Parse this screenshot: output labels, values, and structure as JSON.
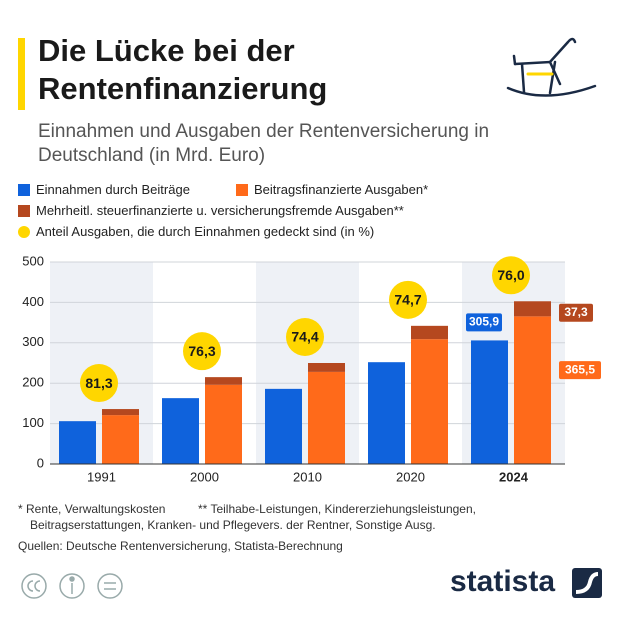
{
  "chart_data": {
    "type": "bar",
    "title": "Die Lücke bei der Rentenfinanzierung",
    "subtitle": "Einnahmen und Ausgaben der Rentenversicherung in Deutschland (in Mrd. Euro)",
    "categories": [
      "1991",
      "2000",
      "2010",
      "2020",
      "2024"
    ],
    "series": [
      {
        "name": "Einnahmen durch Beiträge",
        "color": "#0f62dc",
        "values": [
          106,
          163,
          186,
          252,
          305.9
        ],
        "value_labels": [
          null,
          null,
          null,
          null,
          "305,9"
        ]
      },
      {
        "name": "Beitragsfinanzierte Ausgaben*",
        "color": "#ff6a1a",
        "values": [
          121,
          196,
          228,
          309,
          365.5
        ],
        "value_labels": [
          null,
          null,
          null,
          null,
          "365,5"
        ]
      },
      {
        "name": "Mehrheitl. steuerfinanzierte u. versicherungsfremde Ausgaben**",
        "color": "#b5481f",
        "values": [
          15,
          19,
          22,
          33,
          37.3
        ],
        "value_labels": [
          null,
          null,
          null,
          null,
          "37,3"
        ]
      }
    ],
    "coverage": {
      "name": "Anteil Ausgaben, die durch Einnahmen gedeckt sind (in %)",
      "color": "#ffd600",
      "values": [
        81.3,
        76.3,
        74.4,
        74.7,
        76.0
      ],
      "value_labels": [
        "81,3",
        "76,3",
        "74,4",
        "74,7",
        "76,0"
      ]
    },
    "ylim": [
      0,
      500
    ],
    "yticks": [
      0,
      100,
      200,
      300,
      400,
      500
    ],
    "grid": true,
    "notes": [
      "* Rente, Verwaltungskosten",
      "** Teilhabe-Leistungen, Kindererziehungsleistungen,",
      "Beitragserstattungen, Kranken- und Pflegevers. der Rentner, Sonstige Ausg."
    ],
    "source": "Quellen: Deutsche Rentenversicherung, Statista-Berechnung"
  },
  "brand": "statista"
}
